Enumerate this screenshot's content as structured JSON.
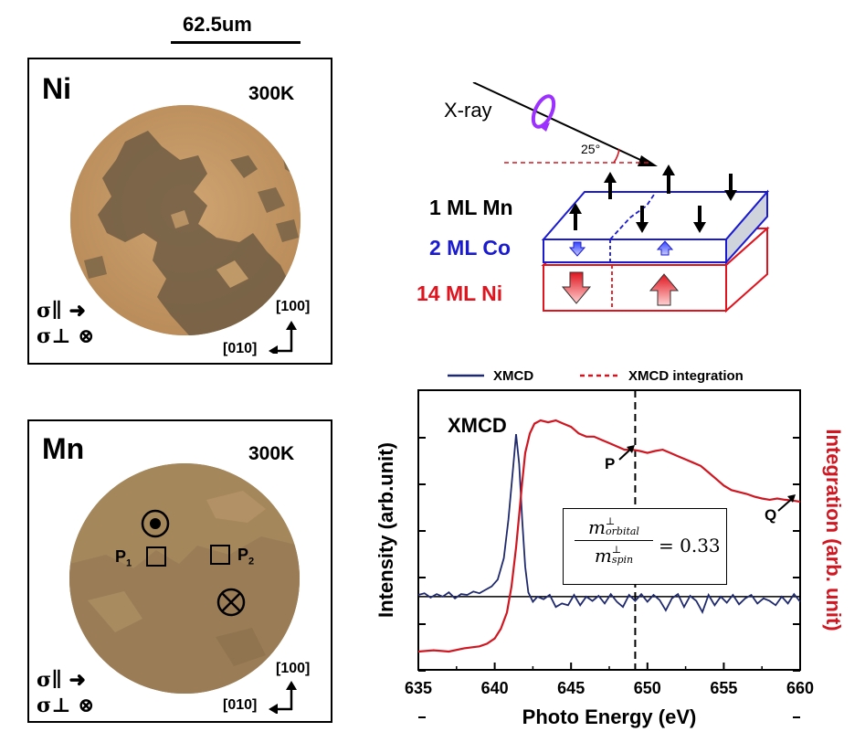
{
  "scale_bar": {
    "label": "62.5um"
  },
  "ni_panel": {
    "element": "Ni",
    "temperature": "300K",
    "sigma_parallel": "σ∥",
    "sigma_perp": "σ⊥",
    "axis_100": "[100]",
    "axis_010": "[010]"
  },
  "mn_panel": {
    "element": "Mn",
    "temperature": "300K",
    "sigma_parallel": "σ∥",
    "sigma_perp": "σ⊥",
    "axis_100": "[100]",
    "axis_010": "[010]",
    "p1": "P",
    "p1_sub": "1",
    "p2": "P",
    "p2_sub": "2"
  },
  "schematic": {
    "xray_label": "X-ray",
    "angle_label": "25°",
    "layer_mn": "1 ML Mn",
    "layer_co": "2 ML Co",
    "layer_ni": "14 ML Ni",
    "color_mn": "#000000",
    "color_co": "#1a1ad0",
    "color_ni": "#e0141e"
  },
  "formula": {
    "numerator": "m",
    "numerator_sup": "⊥",
    "numerator_sub": "orbital",
    "denominator": "m",
    "denominator_sup": "⊥",
    "denominator_sub": "spin",
    "value": "= 0.33"
  },
  "chart_data": {
    "type": "line",
    "xlabel": "Photo Energy (eV)",
    "ylabel_left": "Intensity (arb.unit)",
    "ylabel_right": "Integration (arb. unit)",
    "xlim": [
      635,
      660
    ],
    "x_ticks": [
      "635",
      "640",
      "645",
      "650",
      "655",
      "660"
    ],
    "annotation_xmcd": "XMCD",
    "annotation_p": "P",
    "annotation_q": "Q",
    "vertical_dashed_line_x": 649.2,
    "legend": [
      {
        "name": "XMCD",
        "style": "solid",
        "color": "#1f2a6e"
      },
      {
        "name": "XMCD integration",
        "style": "dashed",
        "color": "#d01620"
      }
    ],
    "series": [
      {
        "name": "XMCD",
        "color": "#1f2a6e",
        "x": [
          635,
          635.4,
          635.8,
          636.2,
          636.6,
          637,
          637.4,
          637.8,
          638.2,
          638.6,
          639,
          639.4,
          639.8,
          640.2,
          640.6,
          640.9,
          641.2,
          641.4,
          641.6,
          641.8,
          642.0,
          642.2,
          642.5,
          642.8,
          643.2,
          643.6,
          644,
          644.4,
          644.8,
          645.2,
          645.6,
          646,
          646.4,
          646.8,
          647.2,
          647.6,
          648,
          648.4,
          648.8,
          649.2,
          649.6,
          650,
          650.4,
          650.8,
          651.2,
          651.6,
          652,
          652.4,
          652.8,
          653.2,
          653.6,
          654,
          654.4,
          654.8,
          655.2,
          655.6,
          656,
          656.4,
          656.8,
          657.2,
          657.6,
          658,
          658.4,
          658.8,
          659.2,
          659.6,
          660
        ],
        "y": [
          0.02,
          0.04,
          -0.01,
          0.03,
          0.0,
          0.05,
          -0.02,
          0.03,
          0.02,
          0.06,
          0.04,
          0.08,
          0.12,
          0.2,
          0.45,
          0.9,
          1.5,
          1.9,
          1.55,
          0.9,
          0.35,
          0.05,
          -0.06,
          0.0,
          -0.03,
          0.02,
          -0.12,
          -0.08,
          -0.1,
          0.02,
          -0.1,
          0.0,
          -0.05,
          0.01,
          -0.08,
          0.03,
          -0.06,
          -0.12,
          0.02,
          -0.05,
          0.03,
          -0.06,
          0.02,
          -0.04,
          -0.16,
          -0.02,
          0.03,
          -0.12,
          0.01,
          -0.05,
          -0.18,
          0.02,
          -0.1,
          0.0,
          -0.07,
          0.02,
          -0.09,
          -0.02,
          0.02,
          -0.08,
          -0.02,
          -0.05,
          -0.1,
          0.0,
          -0.08,
          0.03,
          -0.06
        ]
      },
      {
        "name": "XMCD integration",
        "color": "#d01620",
        "x": [
          635,
          636,
          637,
          638,
          639,
          639.5,
          640,
          640.4,
          640.8,
          641.1,
          641.4,
          641.6,
          641.8,
          642.0,
          642.3,
          642.6,
          643,
          643.5,
          644,
          644.5,
          645,
          645.5,
          646,
          646.5,
          647,
          647.5,
          648,
          648.5,
          649,
          649.5,
          650,
          650.5,
          651,
          651.5,
          652,
          652.5,
          653,
          653.5,
          654,
          654.5,
          655,
          655.5,
          656,
          656.5,
          657,
          657.5,
          658,
          658.5,
          659,
          659.5,
          660
        ],
        "y": [
          0.0,
          0.02,
          0.0,
          0.05,
          0.08,
          0.12,
          0.2,
          0.35,
          0.6,
          1.0,
          1.6,
          2.1,
          2.6,
          3.05,
          3.35,
          3.5,
          3.55,
          3.52,
          3.55,
          3.5,
          3.45,
          3.35,
          3.3,
          3.3,
          3.25,
          3.2,
          3.15,
          3.1,
          3.1,
          3.08,
          3.05,
          3.08,
          3.1,
          3.05,
          3.0,
          2.95,
          2.9,
          2.85,
          2.75,
          2.65,
          2.55,
          2.48,
          2.45,
          2.42,
          2.38,
          2.35,
          2.33,
          2.35,
          2.33,
          2.32,
          2.3
        ]
      }
    ]
  }
}
